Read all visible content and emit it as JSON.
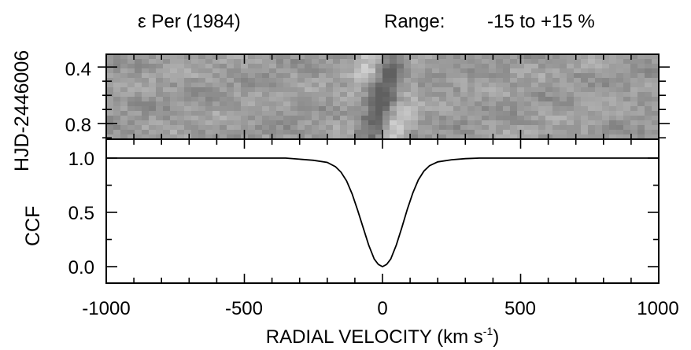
{
  "header": {
    "title": "ε Per (1984)",
    "range_label": "Range:",
    "range_value": "-15 to +15 %"
  },
  "top_panel": {
    "ylabel": "HJD-2446006",
    "yticks": [
      "0.4",
      "0.8"
    ]
  },
  "bottom_panel": {
    "ylabel": "CCF",
    "yticks": [
      "1.0",
      "0.5",
      "0.0"
    ]
  },
  "xaxis": {
    "label_main": "RADIAL VELOCITY (km s",
    "label_sup": "-1",
    "label_end": ")",
    "ticks": [
      "-1000",
      "-500",
      "0",
      "500",
      "1000"
    ]
  },
  "chart_data": [
    {
      "type": "heatmap",
      "title": "ε Per (1984)",
      "subtitle": "Range: -15 to +15 %",
      "ylabel": "HJD-2446006",
      "xlim": [
        -1000,
        1000
      ],
      "ylim": [
        0.31,
        0.91
      ],
      "y_reversed": true,
      "color_scale": "grayscale",
      "value_range_percent": [
        -15,
        15
      ],
      "features": "diagonal bright/dark stripes moving from about -150 to +150 km/s across the line profile"
    },
    {
      "type": "line",
      "ylabel": "CCF",
      "xlabel": "RADIAL VELOCITY (km s-1)",
      "xlim": [
        -1000,
        1000
      ],
      "ylim": [
        -0.1,
        1.1
      ],
      "series": [
        {
          "x": [
            -1000,
            -500,
            -400,
            -350,
            -300,
            -250,
            -200,
            -170,
            -150,
            -130,
            -110,
            -90,
            -70,
            -50,
            -30,
            -15,
            0,
            15,
            30,
            50,
            70,
            90,
            110,
            130,
            150,
            170,
            200,
            250,
            300,
            350,
            400,
            500,
            1000
          ],
          "values": [
            1.0,
            1.0,
            1.0,
            1.0,
            0.99,
            0.98,
            0.96,
            0.92,
            0.87,
            0.79,
            0.67,
            0.52,
            0.36,
            0.2,
            0.07,
            0.02,
            0.0,
            0.02,
            0.07,
            0.2,
            0.36,
            0.53,
            0.68,
            0.8,
            0.88,
            0.93,
            0.965,
            0.985,
            0.995,
            1.0,
            1.0,
            1.0,
            1.0
          ]
        }
      ]
    }
  ]
}
